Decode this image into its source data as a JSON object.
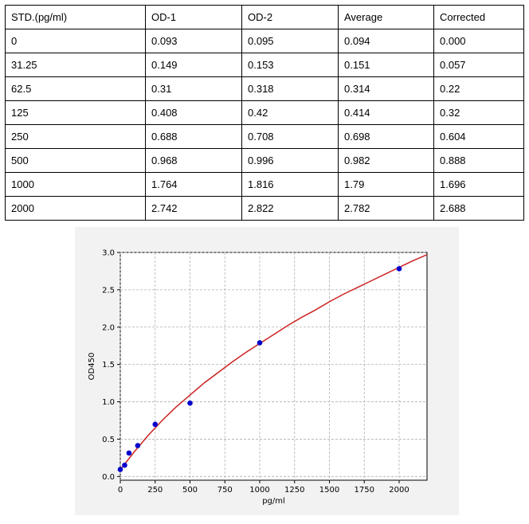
{
  "table": {
    "headers": [
      "STD.(pg/ml)",
      "OD-1",
      "OD-2",
      "Average",
      "Corrected"
    ],
    "rows": [
      [
        "0",
        "0.093",
        "0.095",
        "0.094",
        "0.000"
      ],
      [
        "31.25",
        "0.149",
        "0.153",
        "0.151",
        "0.057"
      ],
      [
        "62.5",
        "0.31",
        "0.318",
        "0.314",
        "0.22"
      ],
      [
        "125",
        "0.408",
        "0.42",
        "0.414",
        "0.32"
      ],
      [
        "250",
        "0.688",
        "0.708",
        "0.698",
        "0.604"
      ],
      [
        "500",
        "0.968",
        "0.996",
        "0.982",
        "0.888"
      ],
      [
        "1000",
        "1.764",
        "1.816",
        "1.79",
        "1.696"
      ],
      [
        "2000",
        "2.742",
        "2.822",
        "2.782",
        "2.688"
      ]
    ]
  },
  "chart_data": {
    "type": "scatter",
    "xlabel": "pg/ml",
    "ylabel": "OD450",
    "xlim": [
      0,
      2200
    ],
    "ylim": [
      -0.05,
      3.0
    ],
    "xticks": [
      0,
      250,
      500,
      750,
      1000,
      1250,
      1500,
      1750,
      2000
    ],
    "yticks": [
      0.0,
      0.5,
      1.0,
      1.5,
      2.0,
      2.5,
      3.0
    ],
    "xtick_labels": [
      "0",
      "250",
      "500",
      "750",
      "1000",
      "1250",
      "1500",
      "1750",
      "2000"
    ],
    "ytick_labels": [
      "0.0",
      "0.5",
      "1.0",
      "1.5",
      "2.0",
      "2.5",
      "3.0"
    ],
    "grid": true,
    "points": {
      "x": [
        0,
        31.25,
        62.5,
        125,
        250,
        500,
        1000,
        2000
      ],
      "y": [
        0.094,
        0.151,
        0.314,
        0.414,
        0.698,
        0.982,
        1.79,
        2.782
      ],
      "color": "#0000cc"
    },
    "fit_curve": {
      "x": [
        0,
        100,
        200,
        300,
        400,
        500,
        600,
        700,
        800,
        900,
        1000,
        1100,
        1200,
        1300,
        1400,
        1500,
        1600,
        1700,
        1800,
        1900,
        2000,
        2100,
        2200
      ],
      "y": [
        0.09,
        0.33,
        0.55,
        0.75,
        0.93,
        1.09,
        1.25,
        1.39,
        1.53,
        1.66,
        1.78,
        1.9,
        2.02,
        2.13,
        2.23,
        2.34,
        2.44,
        2.53,
        2.62,
        2.71,
        2.8,
        2.89,
        2.97
      ],
      "color": "#cc2222"
    }
  }
}
